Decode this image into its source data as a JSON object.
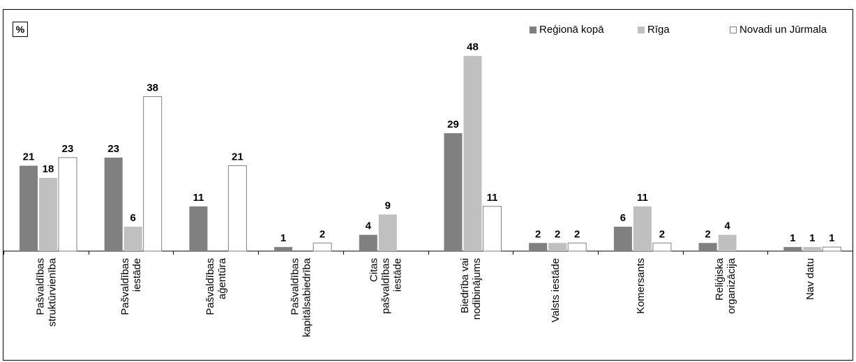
{
  "chart_data": {
    "type": "bar",
    "unit_label": "%",
    "categories": [
      [
        "Pašvaldības",
        "struktūrvienība"
      ],
      [
        "Pašvaldības",
        "iestāde"
      ],
      [
        "Pašvaldības",
        "aģentūra"
      ],
      [
        "Pašvaldības",
        "kapitālsabiedrība"
      ],
      [
        "Citas",
        "pašvaldības",
        "iestāde"
      ],
      [
        "Biedrība vai",
        "nodibinājums"
      ],
      [
        "Valsts iestāde"
      ],
      [
        "Komersants"
      ],
      [
        "Reliģiska",
        "organizācija"
      ],
      [
        "Nav datu"
      ]
    ],
    "series": [
      {
        "name": "Reģionā kopā",
        "color": "#808080",
        "values": [
          21,
          23,
          11,
          1,
          4,
          29,
          2,
          6,
          2,
          1
        ]
      },
      {
        "name": "Rīga",
        "color": "#c0c0c0",
        "values": [
          18,
          6,
          null,
          null,
          9,
          48,
          2,
          11,
          4,
          1
        ]
      },
      {
        "name": "Novadi un Jūrmala",
        "color": "#ffffff",
        "values": [
          23,
          38,
          21,
          2,
          null,
          11,
          2,
          2,
          null,
          1
        ]
      }
    ],
    "ylim": [
      0,
      56
    ],
    "legend_position": "top-right",
    "grid": false
  }
}
